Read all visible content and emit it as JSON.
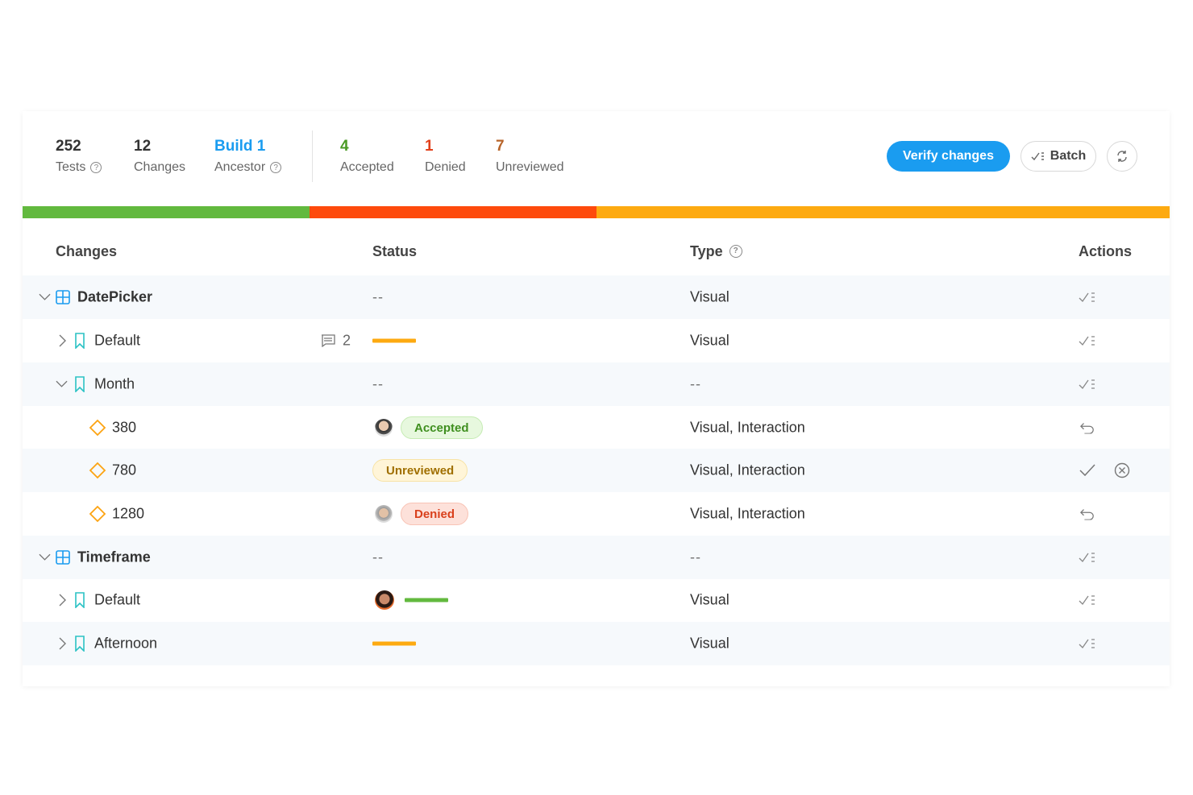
{
  "summary": {
    "stats": [
      {
        "value": "252",
        "label": "Tests"
      },
      {
        "value": "12",
        "label": "Changes"
      },
      {
        "value": "Build 1",
        "label": "Ancestor"
      }
    ],
    "counts": [
      {
        "value": "4",
        "label": "Accepted"
      },
      {
        "value": "1",
        "label": "Denied"
      },
      {
        "value": "7",
        "label": "Unreviewed"
      }
    ]
  },
  "buttons": {
    "verify": "Verify changes",
    "batch": "Batch"
  },
  "table": {
    "headers": [
      "Changes",
      "Status",
      "Type",
      "Actions"
    ],
    "rows": [
      {
        "name": "DatePicker",
        "status": "--",
        "type": "Visual"
      },
      {
        "name": "Default",
        "comments": "2",
        "type": "Visual"
      },
      {
        "name": "Month",
        "status": "--",
        "type": "--"
      },
      {
        "name": "380",
        "status": "Accepted",
        "type": "Visual, Interaction"
      },
      {
        "name": "780",
        "status": "Unreviewed",
        "type": "Visual, Interaction"
      },
      {
        "name": "1280",
        "status": "Denied",
        "type": "Visual, Interaction"
      },
      {
        "name": "Timeframe",
        "status": "--",
        "type": "--"
      },
      {
        "name": "Default",
        "type": "Visual"
      },
      {
        "name": "Afternoon",
        "type": "Visual"
      }
    ]
  }
}
